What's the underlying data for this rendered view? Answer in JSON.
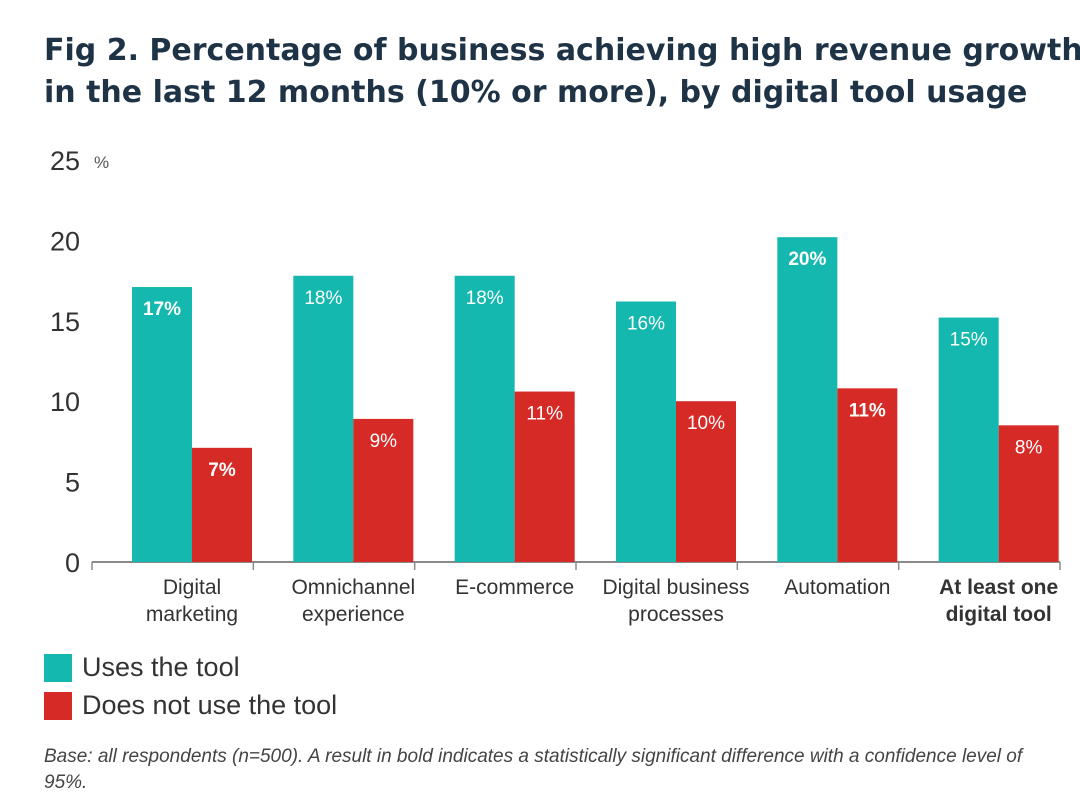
{
  "title_lines": [
    "Fig 2. Percentage of business achieving high revenue growth",
    "in the last 12 months (10% or more), by digital tool usage"
  ],
  "colors": {
    "uses": "#14b8ae",
    "does_not_use": "#d62a27",
    "axis": "#888888",
    "title": "#1f3346"
  },
  "legend": [
    {
      "label": "Uses the tool",
      "color": "#14b8ae"
    },
    {
      "label": "Does not use the tool",
      "color": "#d62a27"
    }
  ],
  "footnote": "Base: all respondents (n=500). A result in bold indicates a statistically significant difference with a confidence level of 95%.",
  "chart_data": {
    "type": "bar",
    "title": "Fig 2. Percentage of business achieving high revenue growth in the last 12 months (10% or more), by digital tool usage",
    "ylabel": "",
    "y_unit": "%",
    "ylim": [
      0,
      25
    ],
    "yticks": [
      0,
      5,
      10,
      15,
      20,
      25
    ],
    "grid": false,
    "legend_position": "bottom-left",
    "categories": [
      [
        "Digital",
        "marketing"
      ],
      [
        "Omnichannel",
        "experience"
      ],
      [
        "E-commerce"
      ],
      [
        "Digital business",
        "processes"
      ],
      [
        "Automation"
      ],
      [
        "At least one",
        "digital tool"
      ]
    ],
    "category_bold": [
      false,
      false,
      false,
      false,
      false,
      true
    ],
    "series": [
      {
        "name": "Uses the tool",
        "values": [
          17.1,
          17.8,
          17.8,
          16.2,
          20.2,
          15.2
        ],
        "labels": [
          "17%",
          "18%",
          "18%",
          "16%",
          "20%",
          "15%"
        ],
        "label_bold": [
          true,
          false,
          false,
          false,
          true,
          false
        ]
      },
      {
        "name": "Does not use the tool",
        "values": [
          7.1,
          8.9,
          10.6,
          10.0,
          10.8,
          8.5
        ],
        "labels": [
          "7%",
          "9%",
          "11%",
          "10%",
          "11%",
          "8%"
        ],
        "label_bold": [
          true,
          false,
          false,
          false,
          true,
          false
        ]
      }
    ]
  }
}
